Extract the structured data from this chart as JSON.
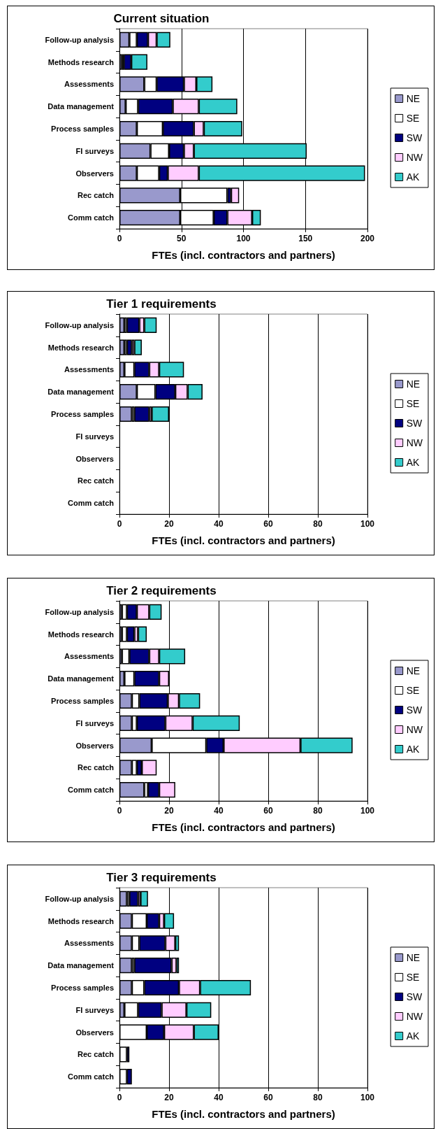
{
  "chart_data": [
    {
      "type": "bar",
      "orientation": "horizontal",
      "stacked": true,
      "title": "Current situation",
      "xlabel": "FTEs (incl. contractors and partners)",
      "categories": [
        "Follow-up analysis",
        "Methods research",
        "Assessments",
        "Data management",
        "Process samples",
        "FI surveys",
        "Observers",
        "Rec catch",
        "Comm catch"
      ],
      "xlim": [
        0,
        200
      ],
      "xticks": [
        0,
        50,
        100,
        150,
        200
      ],
      "grid": "x",
      "legend": "right",
      "series": [
        {
          "name": "NE",
          "color": "#9999cc",
          "values": [
            8,
            2,
            20,
            5,
            14,
            25,
            14,
            49,
            49
          ]
        },
        {
          "name": "SE",
          "color": "#ffffff",
          "values": [
            6,
            1.5,
            10,
            10,
            21,
            15,
            18,
            38,
            27
          ]
        },
        {
          "name": "SW",
          "color": "#000080",
          "values": [
            9,
            6,
            22,
            28,
            25,
            12,
            7,
            3,
            11
          ]
        },
        {
          "name": "NW",
          "color": "#ffccff",
          "values": [
            7,
            null,
            10,
            21,
            8,
            8,
            25,
            6.5,
            20
          ]
        },
        {
          "name": "AK",
          "color": "#33cccc",
          "values": [
            11,
            13,
            13,
            31,
            31,
            91,
            134,
            null,
            7
          ]
        }
      ]
    },
    {
      "type": "bar",
      "orientation": "horizontal",
      "stacked": true,
      "title": "Tier 1 requirements",
      "xlabel": "FTEs (incl. contractors and partners)",
      "categories": [
        "Follow-up analysis",
        "Methods research",
        "Assessments",
        "Data management",
        "Process samples",
        "FI surveys",
        "Observers",
        "Rec catch",
        "Comm catch"
      ],
      "xlim": [
        0,
        100
      ],
      "xticks": [
        0,
        20,
        40,
        60,
        80,
        100
      ],
      "grid": "x",
      "legend": "right",
      "series": [
        {
          "name": "NE",
          "color": "#9999cc",
          "values": [
            2,
            2,
            2,
            7,
            5,
            null,
            null,
            null,
            null
          ]
        },
        {
          "name": "SE",
          "color": "#ffffff",
          "values": [
            1,
            1,
            4,
            7.5,
            1,
            null,
            null,
            null,
            null
          ]
        },
        {
          "name": "SW",
          "color": "#000080",
          "values": [
            5,
            2,
            6,
            8,
            6,
            null,
            null,
            null,
            null
          ]
        },
        {
          "name": "NW",
          "color": "#ffccff",
          "values": [
            2,
            1,
            4,
            5,
            1,
            null,
            null,
            null,
            null
          ]
        },
        {
          "name": "AK",
          "color": "#33cccc",
          "values": [
            5,
            3,
            10,
            6,
            7,
            null,
            null,
            null,
            null
          ]
        }
      ]
    },
    {
      "type": "bar",
      "orientation": "horizontal",
      "stacked": true,
      "title": "Tier 2 requirements",
      "xlabel": "FTEs (incl. contractors and partners)",
      "categories": [
        "Follow-up analysis",
        "Methods research",
        "Assessments",
        "Data management",
        "Process samples",
        "FI surveys",
        "Observers",
        "Rec catch",
        "Comm catch"
      ],
      "xlim": [
        0,
        100
      ],
      "xticks": [
        0,
        20,
        40,
        60,
        80,
        100
      ],
      "grid": "x",
      "legend": "right",
      "series": [
        {
          "name": "NE",
          "color": "#9999cc",
          "values": [
            1,
            1,
            1,
            2,
            5,
            5,
            13,
            5,
            10
          ]
        },
        {
          "name": "SE",
          "color": "#ffffff",
          "values": [
            2,
            2,
            3,
            4,
            3,
            2,
            22,
            2,
            1.5
          ]
        },
        {
          "name": "SW",
          "color": "#000080",
          "values": [
            4,
            3,
            8,
            10,
            11.5,
            11.5,
            7,
            2,
            4.5
          ]
        },
        {
          "name": "NW",
          "color": "#ffccff",
          "values": [
            5,
            1.5,
            4,
            4,
            4.5,
            11,
            31,
            6,
            6.5
          ]
        },
        {
          "name": "AK",
          "color": "#33cccc",
          "values": [
            5,
            3.5,
            10.5,
            null,
            8.5,
            19,
            21,
            null,
            null
          ]
        }
      ]
    },
    {
      "type": "bar",
      "orientation": "horizontal",
      "stacked": true,
      "title": "Tier 3 requirements",
      "xlabel": "FTEs (incl. contractors and partners)",
      "categories": [
        "Follow-up analysis",
        "Methods research",
        "Assessments",
        "Data management",
        "Process samples",
        "FI surveys",
        "Observers",
        "Rec catch",
        "Comm catch"
      ],
      "xlim": [
        0,
        100
      ],
      "xticks": [
        0,
        20,
        40,
        60,
        80,
        100
      ],
      "grid": "x",
      "legend": "right",
      "series": [
        {
          "name": "NE",
          "color": "#9999cc",
          "values": [
            3,
            5,
            5,
            5,
            5,
            2,
            null,
            null,
            null
          ]
        },
        {
          "name": "SE",
          "color": "#ffffff",
          "values": [
            1,
            6,
            3,
            1,
            5,
            5.5,
            11,
            3,
            3
          ]
        },
        {
          "name": "SW",
          "color": "#000080",
          "values": [
            3.5,
            5,
            10.5,
            15,
            14,
            9.5,
            7,
            1,
            2
          ]
        },
        {
          "name": "NW",
          "color": "#ffccff",
          "values": [
            1,
            2,
            4,
            2,
            8.5,
            10,
            12,
            null,
            null
          ]
        },
        {
          "name": "AK",
          "color": "#33cccc",
          "values": [
            3,
            4,
            1.5,
            1,
            20.5,
            10,
            10,
            null,
            null
          ]
        }
      ]
    }
  ]
}
